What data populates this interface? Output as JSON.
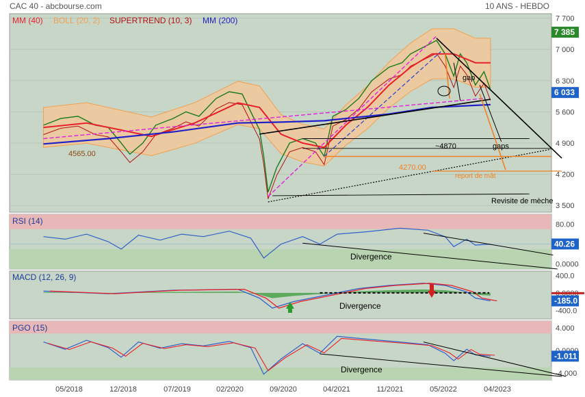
{
  "header": {
    "left": "CAC 40 - abcbourse.com",
    "right": "10 ANS - HEBDO"
  },
  "colors": {
    "panel_bg": "#c8d6c8",
    "sma40": "#e8202a",
    "boll": "#f0a050",
    "supertrend": "#b01010",
    "sma200": "#2020c8",
    "rsi": "#3060c8",
    "zone_high": "#e8b8b8",
    "zone_low": "#b8d4b0",
    "price_badge": "#2a8a2a",
    "badge_blue": "#1e64c8",
    "orange": "#f08020",
    "magenta": "#e020e0"
  },
  "chart_data": [
    {
      "type": "candlestick",
      "title": "CAC 40",
      "legend": [
        {
          "name": "MM (40)",
          "color": "#e8202a"
        },
        {
          "name": "BOLL (20, 2)",
          "color": "#f0a050"
        },
        {
          "name": "SUPERTREND (10, 3)",
          "color": "#b01010"
        },
        {
          "name": "MM (200)",
          "color": "#2020c8"
        }
      ],
      "y_ticks": [
        "7 700",
        "7 000",
        "6 300",
        "5 600",
        "4 900",
        "4 200",
        "3 500"
      ],
      "y_tick_values": [
        7700,
        7000,
        6300,
        5600,
        4900,
        4200,
        3500
      ],
      "ylim": [
        3350,
        7800
      ],
      "x_ticks": [
        "05/2018",
        "12/2018",
        "07/2019",
        "02/2020",
        "09/2020",
        "04/2021",
        "11/2021",
        "05/2022",
        "04/2023"
      ],
      "badges": [
        {
          "label": "7 385",
          "value": 7385,
          "color": "#2a8a2a"
        },
        {
          "label": "6 033",
          "value": 6033,
          "color": "#1e64c8"
        }
      ],
      "levels": [
        {
          "label": "4565.00",
          "value": 4565
        },
        {
          "label": "4270.00",
          "value": 4270
        }
      ],
      "annotations": [
        "gap",
        "~4870",
        "gaps",
        "report de mât",
        "Revisite de mèche"
      ],
      "price_path": [
        [
          0,
          5300
        ],
        [
          8,
          5450
        ],
        [
          16,
          5500
        ],
        [
          24,
          5300
        ],
        [
          30,
          5250
        ],
        [
          36,
          4900
        ],
        [
          40,
          4650
        ],
        [
          46,
          4900
        ],
        [
          52,
          5300
        ],
        [
          60,
          5450
        ],
        [
          66,
          5600
        ],
        [
          72,
          5500
        ],
        [
          80,
          5900
        ],
        [
          86,
          6050
        ],
        [
          92,
          6000
        ],
        [
          100,
          5200
        ],
        [
          102,
          4600
        ],
        [
          104,
          3800
        ],
        [
          108,
          4350
        ],
        [
          114,
          4900
        ],
        [
          120,
          5000
        ],
        [
          126,
          4900
        ],
        [
          130,
          4600
        ],
        [
          134,
          5500
        ],
        [
          140,
          5650
        ],
        [
          146,
          5900
        ],
        [
          152,
          6300
        ],
        [
          160,
          6600
        ],
        [
          166,
          6700
        ],
        [
          170,
          6900
        ],
        [
          174,
          7000
        ],
        [
          178,
          7100
        ],
        [
          182,
          7200
        ],
        [
          186,
          6900
        ],
        [
          190,
          6400
        ],
        [
          193,
          6900
        ],
        [
          196,
          6700
        ],
        [
          200,
          6200
        ],
        [
          204,
          6500
        ],
        [
          207,
          6100
        ]
      ],
      "sma40_path": [
        [
          0,
          5250
        ],
        [
          20,
          5350
        ],
        [
          35,
          5200
        ],
        [
          50,
          5050
        ],
        [
          70,
          5350
        ],
        [
          90,
          5800
        ],
        [
          100,
          5700
        ],
        [
          110,
          5100
        ],
        [
          120,
          4900
        ],
        [
          130,
          4800
        ],
        [
          140,
          5300
        ],
        [
          150,
          5700
        ],
        [
          160,
          6200
        ],
        [
          170,
          6600
        ],
        [
          180,
          6900
        ],
        [
          190,
          6900
        ],
        [
          200,
          6700
        ],
        [
          207,
          6700
        ]
      ],
      "sma200_path": [
        [
          0,
          4880
        ],
        [
          30,
          5000
        ],
        [
          60,
          5150
        ],
        [
          90,
          5350
        ],
        [
          110,
          5370
        ],
        [
          130,
          5400
        ],
        [
          160,
          5550
        ],
        [
          180,
          5700
        ],
        [
          207,
          5760
        ]
      ]
    },
    {
      "type": "line",
      "title": "RSI (14)",
      "y_ticks": [
        "80.00",
        "40.00",
        "0.0000"
      ],
      "y_tick_values": [
        80,
        40,
        0
      ],
      "ylim": [
        -10,
        100
      ],
      "badge": {
        "label": "40.26",
        "value": 40.26
      },
      "annotation": "Divergence",
      "rsi_path": [
        [
          0,
          55
        ],
        [
          10,
          50
        ],
        [
          20,
          60
        ],
        [
          30,
          45
        ],
        [
          36,
          30
        ],
        [
          44,
          58
        ],
        [
          54,
          48
        ],
        [
          64,
          60
        ],
        [
          74,
          55
        ],
        [
          86,
          66
        ],
        [
          96,
          52
        ],
        [
          102,
          12
        ],
        [
          110,
          40
        ],
        [
          120,
          55
        ],
        [
          128,
          40
        ],
        [
          136,
          60
        ],
        [
          150,
          65
        ],
        [
          165,
          72
        ],
        [
          178,
          68
        ],
        [
          186,
          55
        ],
        [
          190,
          35
        ],
        [
          196,
          50
        ],
        [
          200,
          38
        ],
        [
          207,
          40
        ]
      ]
    },
    {
      "type": "line",
      "title": "MACD (12, 26, 9)",
      "y_ticks": [
        "400.0",
        "0.0000",
        "-400.0"
      ],
      "y_tick_values": [
        400,
        0,
        -400
      ],
      "ylim": [
        -600,
        500
      ],
      "badges": [
        {
          "label": "0.0000",
          "value": 0
        },
        {
          "label": "-185.0",
          "value": -185
        }
      ],
      "annotation": "Divergence",
      "macd_path": [
        [
          0,
          40
        ],
        [
          30,
          -20
        ],
        [
          60,
          60
        ],
        [
          90,
          80
        ],
        [
          100,
          -120
        ],
        [
          106,
          -350
        ],
        [
          116,
          -200
        ],
        [
          126,
          -100
        ],
        [
          134,
          -20
        ],
        [
          146,
          100
        ],
        [
          160,
          170
        ],
        [
          176,
          220
        ],
        [
          186,
          170
        ],
        [
          196,
          20
        ],
        [
          200,
          -120
        ],
        [
          207,
          -185
        ]
      ]
    },
    {
      "type": "line",
      "title": "PGO (15)",
      "y_ticks": [
        "4.000",
        "0.0000",
        "-4.000"
      ],
      "y_tick_values": [
        4,
        0,
        -4
      ],
      "ylim": [
        -5.2,
        5.2
      ],
      "badge": {
        "label": "-1.011",
        "value": -1.011
      },
      "annotation": "Divergence",
      "pgo_path": [
        [
          0,
          1.5
        ],
        [
          10,
          0.2
        ],
        [
          20,
          1.8
        ],
        [
          30,
          0.5
        ],
        [
          36,
          -1.2
        ],
        [
          44,
          1.5
        ],
        [
          54,
          0.4
        ],
        [
          64,
          1.2
        ],
        [
          74,
          0.8
        ],
        [
          86,
          1.6
        ],
        [
          96,
          0.5
        ],
        [
          102,
          -4.2
        ],
        [
          110,
          -1.5
        ],
        [
          120,
          1.2
        ],
        [
          128,
          -0.5
        ],
        [
          136,
          2.5
        ],
        [
          150,
          2.0
        ],
        [
          165,
          1.5
        ],
        [
          178,
          1.0
        ],
        [
          186,
          -0.5
        ],
        [
          190,
          -1.8
        ],
        [
          196,
          0.2
        ],
        [
          200,
          -0.8
        ],
        [
          207,
          -1.0
        ]
      ]
    }
  ]
}
